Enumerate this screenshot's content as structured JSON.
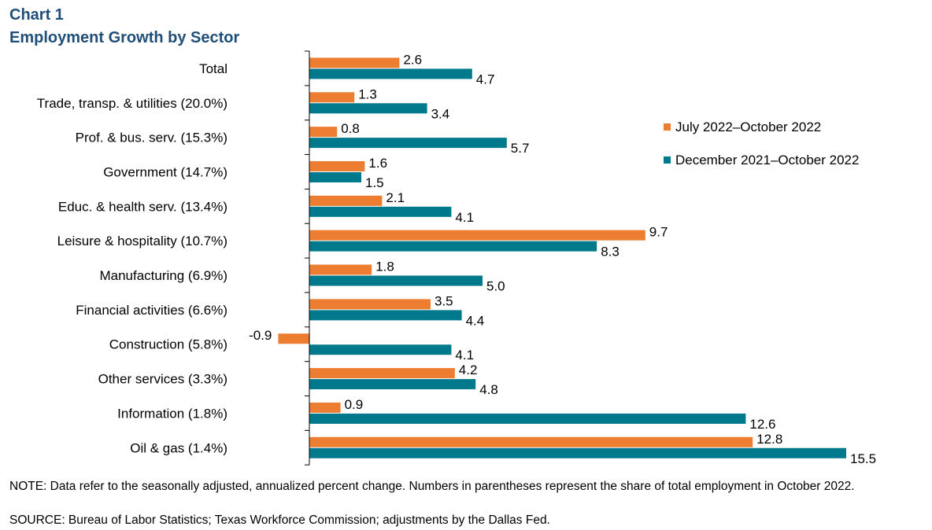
{
  "header": {
    "line1": "Chart 1",
    "line2": "Employment  Growth by Sector"
  },
  "footer": {
    "note": "NOTE: Data refer to the seasonally adjusted, annualized percent change. Numbers in parentheses represent the share of total employment in October 2022.",
    "source": "SOURCE: Bureau of Labor Statistics; Texas Workforce Commission;  adjustments by the Dallas Fed."
  },
  "chart_data": {
    "type": "bar",
    "orientation": "horizontal",
    "title": "Chart 1 Employment Growth by Sector",
    "categories": [
      "Total",
      "Trade, transp. & utilities (20.0%)",
      "Prof. & bus. serv. (15.3%)",
      "Government (14.7%)",
      "Educ. & health serv. (13.4%)",
      "Leisure & hospitality (10.7%)",
      "Manufacturing (6.9%)",
      "Financial activities (6.6%)",
      "Construction (5.8%)",
      "Other services (3.3%)",
      "Information (1.8%)",
      "Oil & gas (1.4%)"
    ],
    "series": [
      {
        "name": "July 2022–October 2022",
        "color": "#ed7d31",
        "values": [
          2.6,
          1.3,
          0.8,
          1.6,
          2.1,
          9.7,
          1.8,
          3.5,
          -0.9,
          4.2,
          0.9,
          12.8
        ]
      },
      {
        "name": "December 2021–October 2022",
        "color": "#00798c",
        "values": [
          4.7,
          3.4,
          5.7,
          1.5,
          4.1,
          8.3,
          5.0,
          4.4,
          4.1,
          4.8,
          12.6,
          15.5
        ]
      }
    ],
    "xlim": [
      -1,
      16
    ],
    "legend_position": "right",
    "grid": false,
    "data_labels": true
  }
}
